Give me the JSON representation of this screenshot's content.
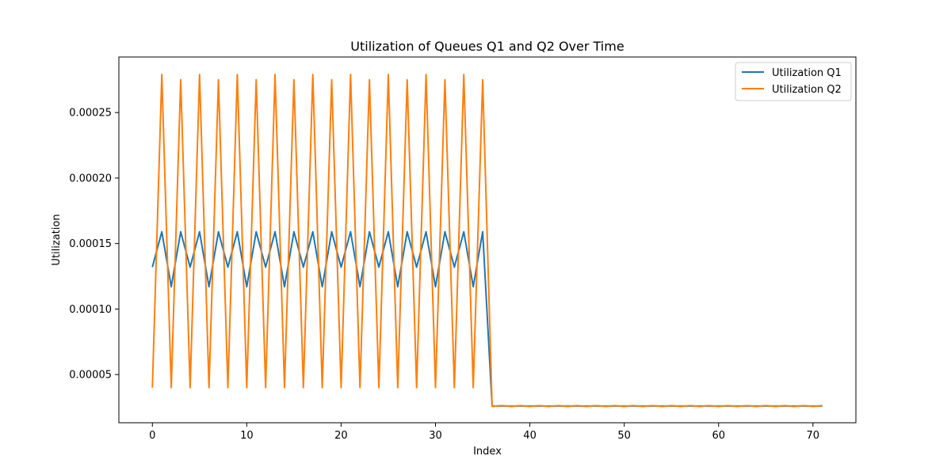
{
  "chart_data": {
    "type": "line",
    "title": "Utilization of Queues Q1 and Q2 Over Time",
    "xlabel": "Index",
    "ylabel": "Utilization",
    "xlim": [
      -3.55,
      74.55
    ],
    "ylim": [
      1.32e-05,
      0.0002924
    ],
    "xticks": [
      0,
      10,
      20,
      30,
      40,
      50,
      60,
      70
    ],
    "xtick_labels": [
      "0",
      "10",
      "20",
      "30",
      "40",
      "50",
      "60",
      "70"
    ],
    "yticks": [
      5e-05,
      0.0001,
      0.00015,
      0.0002,
      0.00025
    ],
    "ytick_labels": [
      "0.00005",
      "0.00010",
      "0.00015",
      "0.00020",
      "0.00025"
    ],
    "grid": false,
    "legend_position": "top-right",
    "x": [
      0,
      1,
      2,
      3,
      4,
      5,
      6,
      7,
      8,
      9,
      10,
      11,
      12,
      13,
      14,
      15,
      16,
      17,
      18,
      19,
      20,
      21,
      22,
      23,
      24,
      25,
      26,
      27,
      28,
      29,
      30,
      31,
      32,
      33,
      34,
      35,
      36,
      37,
      38,
      39,
      40,
      41,
      42,
      43,
      44,
      45,
      46,
      47,
      48,
      49,
      50,
      51,
      52,
      53,
      54,
      55,
      56,
      57,
      58,
      59,
      60,
      61,
      62,
      63,
      64,
      65,
      66,
      67,
      68,
      69,
      70,
      71
    ],
    "series": [
      {
        "name": "Utilization Q1",
        "color": "#1f77b4",
        "values": [
          0.000132,
          0.000159,
          0.000117,
          0.000159,
          0.000132,
          0.000159,
          0.000117,
          0.000159,
          0.000132,
          0.000159,
          0.000117,
          0.000159,
          0.000132,
          0.000159,
          0.000117,
          0.000159,
          0.000132,
          0.000159,
          0.000117,
          0.000159,
          0.000132,
          0.000159,
          0.000117,
          0.000159,
          0.000132,
          0.000159,
          0.000117,
          0.000159,
          0.000132,
          0.000159,
          0.000117,
          0.000159,
          0.000132,
          0.000159,
          0.000117,
          0.000159,
          2.6e-05,
          2.6e-05,
          2.6e-05,
          2.6e-05,
          2.6e-05,
          2.6e-05,
          2.6e-05,
          2.6e-05,
          2.6e-05,
          2.6e-05,
          2.6e-05,
          2.6e-05,
          2.6e-05,
          2.6e-05,
          2.6e-05,
          2.6e-05,
          2.6e-05,
          2.6e-05,
          2.6e-05,
          2.6e-05,
          2.6e-05,
          2.6e-05,
          2.6e-05,
          2.6e-05,
          2.6e-05,
          2.6e-05,
          2.6e-05,
          2.6e-05,
          2.6e-05,
          2.6e-05,
          2.6e-05,
          2.6e-05,
          2.6e-05,
          2.6e-05,
          2.6e-05,
          2.6e-05
        ]
      },
      {
        "name": "Utilization Q2",
        "color": "#ff7f0e",
        "values": [
          4e-05,
          0.000279,
          4e-05,
          0.000275,
          4e-05,
          0.000279,
          4e-05,
          0.000275,
          4e-05,
          0.000279,
          4e-05,
          0.000275,
          4e-05,
          0.000279,
          4e-05,
          0.000275,
          4e-05,
          0.000279,
          4e-05,
          0.000275,
          4e-05,
          0.000279,
          4e-05,
          0.000275,
          4e-05,
          0.000279,
          4e-05,
          0.000275,
          4e-05,
          0.000279,
          4e-05,
          0.000275,
          4e-05,
          0.000279,
          4e-05,
          0.000275,
          2.57e-05,
          2.63e-05,
          2.57e-05,
          2.63e-05,
          2.57e-05,
          2.63e-05,
          2.57e-05,
          2.63e-05,
          2.57e-05,
          2.63e-05,
          2.57e-05,
          2.63e-05,
          2.57e-05,
          2.63e-05,
          2.57e-05,
          2.63e-05,
          2.57e-05,
          2.63e-05,
          2.57e-05,
          2.63e-05,
          2.57e-05,
          2.63e-05,
          2.57e-05,
          2.63e-05,
          2.57e-05,
          2.63e-05,
          2.57e-05,
          2.63e-05,
          2.57e-05,
          2.63e-05,
          2.57e-05,
          2.63e-05,
          2.57e-05,
          2.63e-05,
          2.57e-05,
          2.63e-05
        ]
      }
    ]
  }
}
